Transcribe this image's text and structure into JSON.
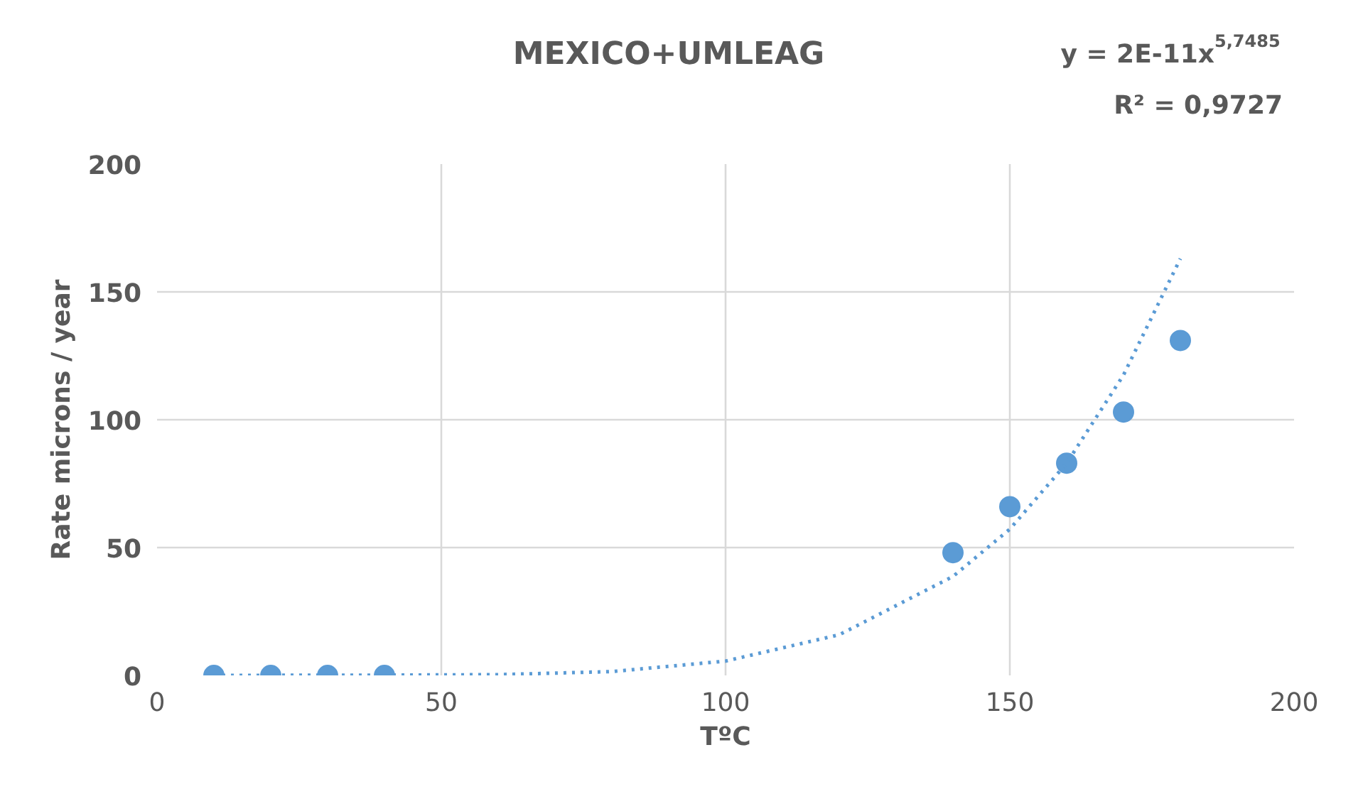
{
  "chart_data": {
    "type": "scatter",
    "title": "MEXICO+UMLEAG",
    "xlabel": "TºC",
    "ylabel": "Rate microns / year",
    "annotations": [
      "y = 2E-11x$^{5,7485}$",
      "R² = 0,9727"
    ],
    "series": [
      {
        "color": "#5b9bd5",
        "x": [
          10,
          20,
          30,
          40,
          140,
          150,
          160,
          170,
          180
        ],
        "values": [
          0,
          0,
          0,
          0,
          48,
          66,
          83,
          103,
          131
        ]
      },
      {
        "type": "line",
        "line_style": "dotted",
        "marker": "none",
        "color": "#5b9bd5",
        "x": [
          10,
          40,
          60,
          80,
          100,
          120,
          140,
          150,
          160,
          170,
          180
        ],
        "values": [
          0,
          0.1,
          0.3,
          1.5,
          5.6,
          15.9,
          38.7,
          57.2,
          83,
          117.5,
          163
        ]
      }
    ],
    "marker": "circle",
    "grid": true,
    "xlim": [
      0,
      200
    ],
    "xticks": [
      0,
      50,
      100,
      150,
      200
    ],
    "ylim": [
      0,
      200
    ],
    "yticks": [
      0,
      50,
      100,
      150,
      200
    ]
  }
}
